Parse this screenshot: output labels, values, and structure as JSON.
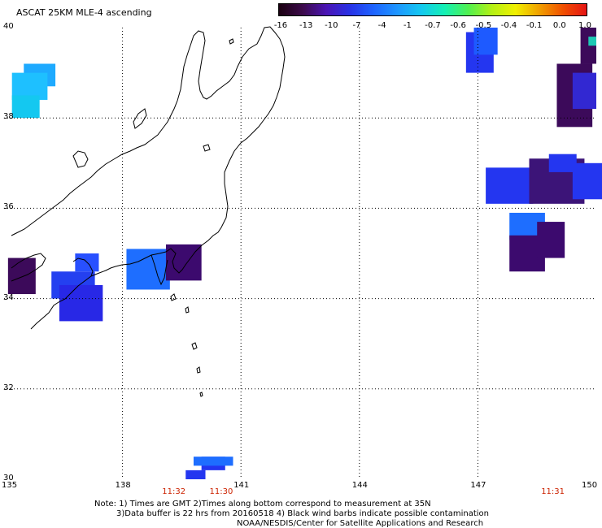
{
  "title": "ASCAT 25KM MLE-4 ascending",
  "colorbar": {
    "labels": [
      "-16",
      "-13",
      "-10",
      "-7",
      "-4",
      "-1",
      "-0.7",
      "-0.6",
      "-0.5",
      "-0.4",
      "-0.1",
      "0.0",
      "1.0"
    ],
    "colors": [
      "#1a0010",
      "#3c0a4a",
      "#4a14b4",
      "#2832e6",
      "#1e64ff",
      "#1e96ff",
      "#14c8f0",
      "#14f0b4",
      "#50f050",
      "#b4f014",
      "#f0f000",
      "#f0a000",
      "#f05000",
      "#e61414"
    ]
  },
  "lat_labels": [
    "40",
    "38",
    "36",
    "34",
    "32",
    "30"
  ],
  "lon_labels": [
    "135",
    "138",
    "141",
    "144",
    "147",
    "150"
  ],
  "time_labels": [
    {
      "text": "11:32",
      "lon": 139.3
    },
    {
      "text": "11:30",
      "lon": 140.5
    },
    {
      "text": "11:31",
      "lon": 148.9
    }
  ],
  "notes": [
    "Note: 1) Times are GMT 2)Times along bottom correspond to measurement at 35N",
    "3)Data buffer is 22 hrs from 20160518 4) Black wind barbs indicate possible contamination",
    "NOAA/NESDIS/Center for Satellite Applications and Research"
  ],
  "map": {
    "lon_range": [
      135,
      150
    ],
    "lat_range": [
      30,
      40
    ],
    "grid": true,
    "data_cells": [
      {
        "lon": 135.5,
        "lat": 38.7,
        "w": 0.8,
        "h": 0.5,
        "color": "#1eaaff"
      },
      {
        "lon": 135.2,
        "lat": 38.4,
        "w": 0.9,
        "h": 0.6,
        "color": "#1ec0ff"
      },
      {
        "lon": 135.2,
        "lat": 38.0,
        "w": 0.7,
        "h": 0.5,
        "color": "#14c8f0"
      },
      {
        "lon": 135.1,
        "lat": 34.1,
        "w": 0.7,
        "h": 0.8,
        "color": "#3c0a5a"
      },
      {
        "lon": 136.2,
        "lat": 34.0,
        "w": 1.1,
        "h": 0.6,
        "color": "#2440f0"
      },
      {
        "lon": 136.4,
        "lat": 33.5,
        "w": 1.1,
        "h": 0.8,
        "color": "#2828e6"
      },
      {
        "lon": 136.8,
        "lat": 34.6,
        "w": 0.6,
        "h": 0.4,
        "color": "#2850ff"
      },
      {
        "lon": 138.1,
        "lat": 34.2,
        "w": 1.1,
        "h": 0.9,
        "color": "#1e6eff"
      },
      {
        "lon": 139.1,
        "lat": 34.4,
        "w": 0.9,
        "h": 0.8,
        "color": "#3c0a6e"
      },
      {
        "lon": 146.7,
        "lat": 39.0,
        "w": 0.7,
        "h": 0.9,
        "color": "#2436f0"
      },
      {
        "lon": 146.9,
        "lat": 39.4,
        "w": 0.6,
        "h": 0.6,
        "color": "#1e5aff"
      },
      {
        "lon": 149.0,
        "lat": 37.8,
        "w": 0.9,
        "h": 1.4,
        "color": "#3c0a5a"
      },
      {
        "lon": 149.4,
        "lat": 38.2,
        "w": 0.6,
        "h": 0.8,
        "color": "#3228d2"
      },
      {
        "lon": 149.6,
        "lat": 39.2,
        "w": 0.4,
        "h": 0.8,
        "color": "#3c0a5a"
      },
      {
        "lon": 149.8,
        "lat": 39.6,
        "w": 0.2,
        "h": 0.2,
        "color": "#1ec8b4"
      },
      {
        "lon": 147.2,
        "lat": 36.1,
        "w": 1.2,
        "h": 0.8,
        "color": "#2436f0"
      },
      {
        "lon": 148.3,
        "lat": 36.1,
        "w": 1.4,
        "h": 1.0,
        "color": "#3c1478"
      },
      {
        "lon": 148.8,
        "lat": 36.8,
        "w": 0.7,
        "h": 0.4,
        "color": "#2436f0"
      },
      {
        "lon": 149.4,
        "lat": 36.2,
        "w": 0.8,
        "h": 0.8,
        "color": "#2436f0"
      },
      {
        "lon": 147.8,
        "lat": 35.3,
        "w": 0.9,
        "h": 0.6,
        "color": "#1e6eff"
      },
      {
        "lon": 147.8,
        "lat": 34.6,
        "w": 0.9,
        "h": 0.8,
        "color": "#3c0a6e"
      },
      {
        "lon": 148.5,
        "lat": 34.9,
        "w": 0.7,
        "h": 0.8,
        "color": "#3c0a6e"
      },
      {
        "lon": 140.0,
        "lat": 30.2,
        "w": 0.6,
        "h": 0.3,
        "color": "#2436f0"
      },
      {
        "lon": 139.6,
        "lat": 30.0,
        "w": 0.5,
        "h": 0.2,
        "color": "#2436f0"
      },
      {
        "lon": 139.8,
        "lat": 30.3,
        "w": 1.0,
        "h": 0.2,
        "color": "#1e6eff"
      }
    ]
  }
}
